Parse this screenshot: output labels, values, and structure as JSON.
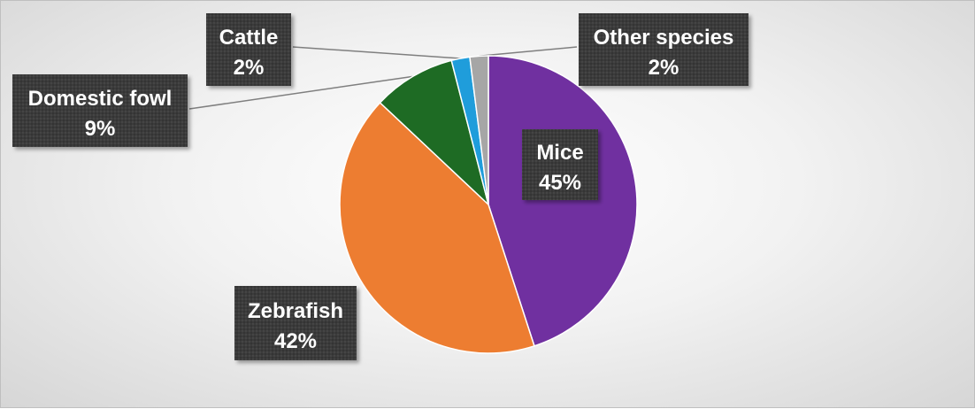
{
  "chart_data": {
    "type": "pie",
    "title": "",
    "start_angle_deg": 0,
    "direction": "clockwise",
    "legend": "none",
    "slices": [
      {
        "label": "Mice",
        "value": 45,
        "display": "45%",
        "color": "#7030a0"
      },
      {
        "label": "Zebrafish",
        "value": 42,
        "display": "42%",
        "color": "#ed7d31"
      },
      {
        "label": "Domestic fowl",
        "value": 9,
        "display": "9%",
        "color": "#1e6b24"
      },
      {
        "label": "Cattle",
        "value": 2,
        "display": "2%",
        "color": "#1f9ddb"
      },
      {
        "label": "Other species",
        "value": 2,
        "display": "2%",
        "color": "#a6a6a6"
      }
    ]
  }
}
